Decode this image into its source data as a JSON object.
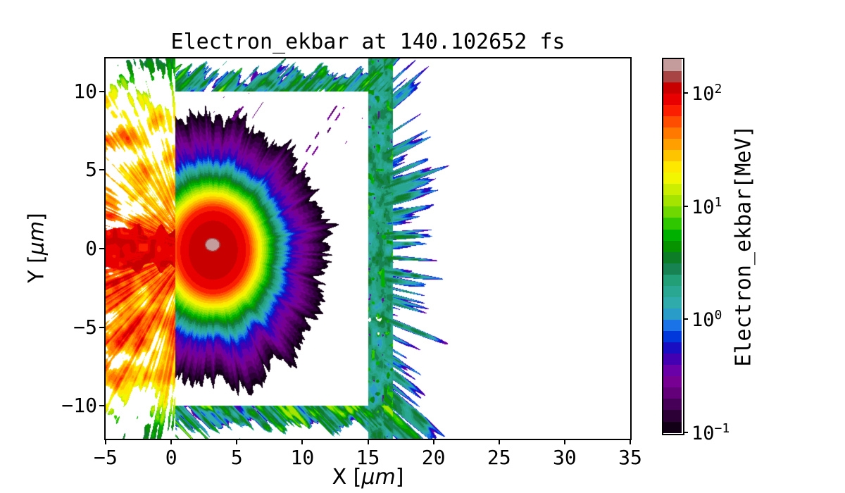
{
  "title": {
    "text": "Electron_ekbar at 140.102652 fs"
  },
  "axes": {
    "xlabel": {
      "prefix": "X [",
      "unit": "μm",
      "suffix": "]"
    },
    "ylabel": {
      "prefix": "Y [",
      "unit": "μm",
      "suffix": "]"
    },
    "xlim": [
      -5,
      35
    ],
    "ylim": [
      -12.1,
      12.1
    ],
    "xticks": [
      {
        "value": -5,
        "label": "−5"
      },
      {
        "value": 0,
        "label": "0"
      },
      {
        "value": 5,
        "label": "5"
      },
      {
        "value": 10,
        "label": "10"
      },
      {
        "value": 15,
        "label": "15"
      },
      {
        "value": 20,
        "label": "20"
      },
      {
        "value": 25,
        "label": "25"
      },
      {
        "value": 30,
        "label": "30"
      },
      {
        "value": 35,
        "label": "35"
      }
    ],
    "yticks": [
      {
        "value": 10,
        "label": "10"
      },
      {
        "value": 5,
        "label": "5"
      },
      {
        "value": 0,
        "label": "0"
      },
      {
        "value": -5,
        "label": "−5"
      },
      {
        "value": -10,
        "label": "−10"
      }
    ]
  },
  "colorbar": {
    "label": "Electron_ekbar[MeV]",
    "scale": "log",
    "log_min": -1.0,
    "log_max": 2.3,
    "band_step_log": 0.1,
    "ticks": [
      {
        "log": 2,
        "base": "10",
        "exp": "2"
      },
      {
        "log": 1,
        "base": "10",
        "exp": "1"
      },
      {
        "log": 0,
        "base": "10",
        "exp": "0"
      },
      {
        "log": -1,
        "base": "10",
        "exp": "−1"
      }
    ],
    "band_colors": [
      "#120016",
      "#2c0037",
      "#470058",
      "#630079",
      "#770092",
      "#6a00a8",
      "#4200b2",
      "#1a0ec2",
      "#0038dc",
      "#1a74e8",
      "#2a9cc8",
      "#2fabab",
      "#2aa792",
      "#239f78",
      "#188352",
      "#0e7d28",
      "#079300",
      "#00b000",
      "#2fc800",
      "#6fd800",
      "#a4e400",
      "#ccee00",
      "#f2f600",
      "#ffe800",
      "#ffc400",
      "#ff9f00",
      "#ff7800",
      "#ff4d00",
      "#fb1e00",
      "#e80000",
      "#c80000",
      "#a84444",
      "#c49c9c"
    ],
    "background_color": "#ffffff"
  },
  "chart_data": {
    "type": "heatmap",
    "title": "Electron_ekbar at 140.102652 fs",
    "xlabel": "X [μm]",
    "ylabel": "Y [μm]",
    "xlim": [
      -5,
      35
    ],
    "ylim": [
      -12.1,
      12.1
    ],
    "value_label": "Electron_ekbar[MeV]",
    "value_scale": "log10",
    "value_range_mev": [
      0.1,
      200
    ],
    "colormap_note": "discrete rainbow (nipy_spectral-like), 33 bands of 0.1 decade, white below 0.1 MeV",
    "features": {
      "target_box": {
        "x0": 0.3,
        "x1": 15.0,
        "y0": -10.0,
        "y1": 10.0,
        "description": "white rectangular target region with no particles except explosion overlap"
      },
      "explosion": {
        "cx": 3.2,
        "cy": -0.1,
        "log_core": 2.3,
        "core_cap": 2.04,
        "r_core": 2.7,
        "slope_core": 0.16,
        "slope_mid": 0.5,
        "mid_span": 3.3,
        "r_out_start": 6.0,
        "slope_out_extra": 0.1,
        "spike_amp": 0.26,
        "spike_r0": 2.5,
        "spike_r1": 7.5,
        "description": "hemispherical blast: red core ~100 MeV, yellow/green/teal/blue shells, ragged purple fringe to r≈9"
      },
      "hot_spot": {
        "cx": 3.15,
        "cy": 0.25,
        "rx": 0.45,
        "ry": 0.33,
        "log": 2.26,
        "rim_falloff": 0.5,
        "description": "small pink-gray >170 MeV spot at blast center"
      },
      "jet": {
        "y_halfwidth": 1.3,
        "log": 1.97,
        "description": "red ~100 MeV horizontal jet along y=0 extending left of target"
      },
      "left_spray": {
        "origin_x": 1.5,
        "log_base": 1.5,
        "center_boost": 0.25,
        "fringe_start": 6.5,
        "fringe_end": 11.8,
        "fringe_drop": 0.6,
        "edge_drop2_start": 9.5,
        "edge_drop2_end": 12.1,
        "edge_drop2": 0.5,
        "gap_threshold": 0.37,
        "description": "dense yellow/orange 20-60 MeV spray for x<0 with green fringes and white gaps"
      },
      "top_sheath": {
        "y0": 10.0,
        "x_max": 16.9,
        "streak_slope": 1.15,
        "log_base": 0.3,
        "fade_t0": 0.4,
        "fade_t1": 2.2,
        "description": "teal/blue ~1-3 MeV streaks above target top edge, slanting up-right"
      },
      "bottom_sheath": {
        "y0": -10.0,
        "x_max": 16.9,
        "streak_slope": 1.15,
        "log_base": 0.3,
        "fade_t0": 0.4,
        "fade_t1": 2.2,
        "description": "teal/green ~1-5 MeV streaks below target bottom edge, slanting down-right"
      },
      "right_sheath": {
        "x0": 15.0,
        "dense_x1": 16.2,
        "x_max": 24.3,
        "log_base": 0.3,
        "log_slope_x": 0.11,
        "radiant_cx": 3.0,
        "radiant_cy": 0.0,
        "description": "dense teal column at target rear surface x=15-17 with blue/purple streaks radiating to x≈23"
      },
      "box_dashes": {
        "x0": 3.2,
        "x1": 14.6,
        "y0": 4.2,
        "y1": 9.9,
        "log": -0.62,
        "description": "sparse purple dashes inside upper target region"
      }
    }
  }
}
